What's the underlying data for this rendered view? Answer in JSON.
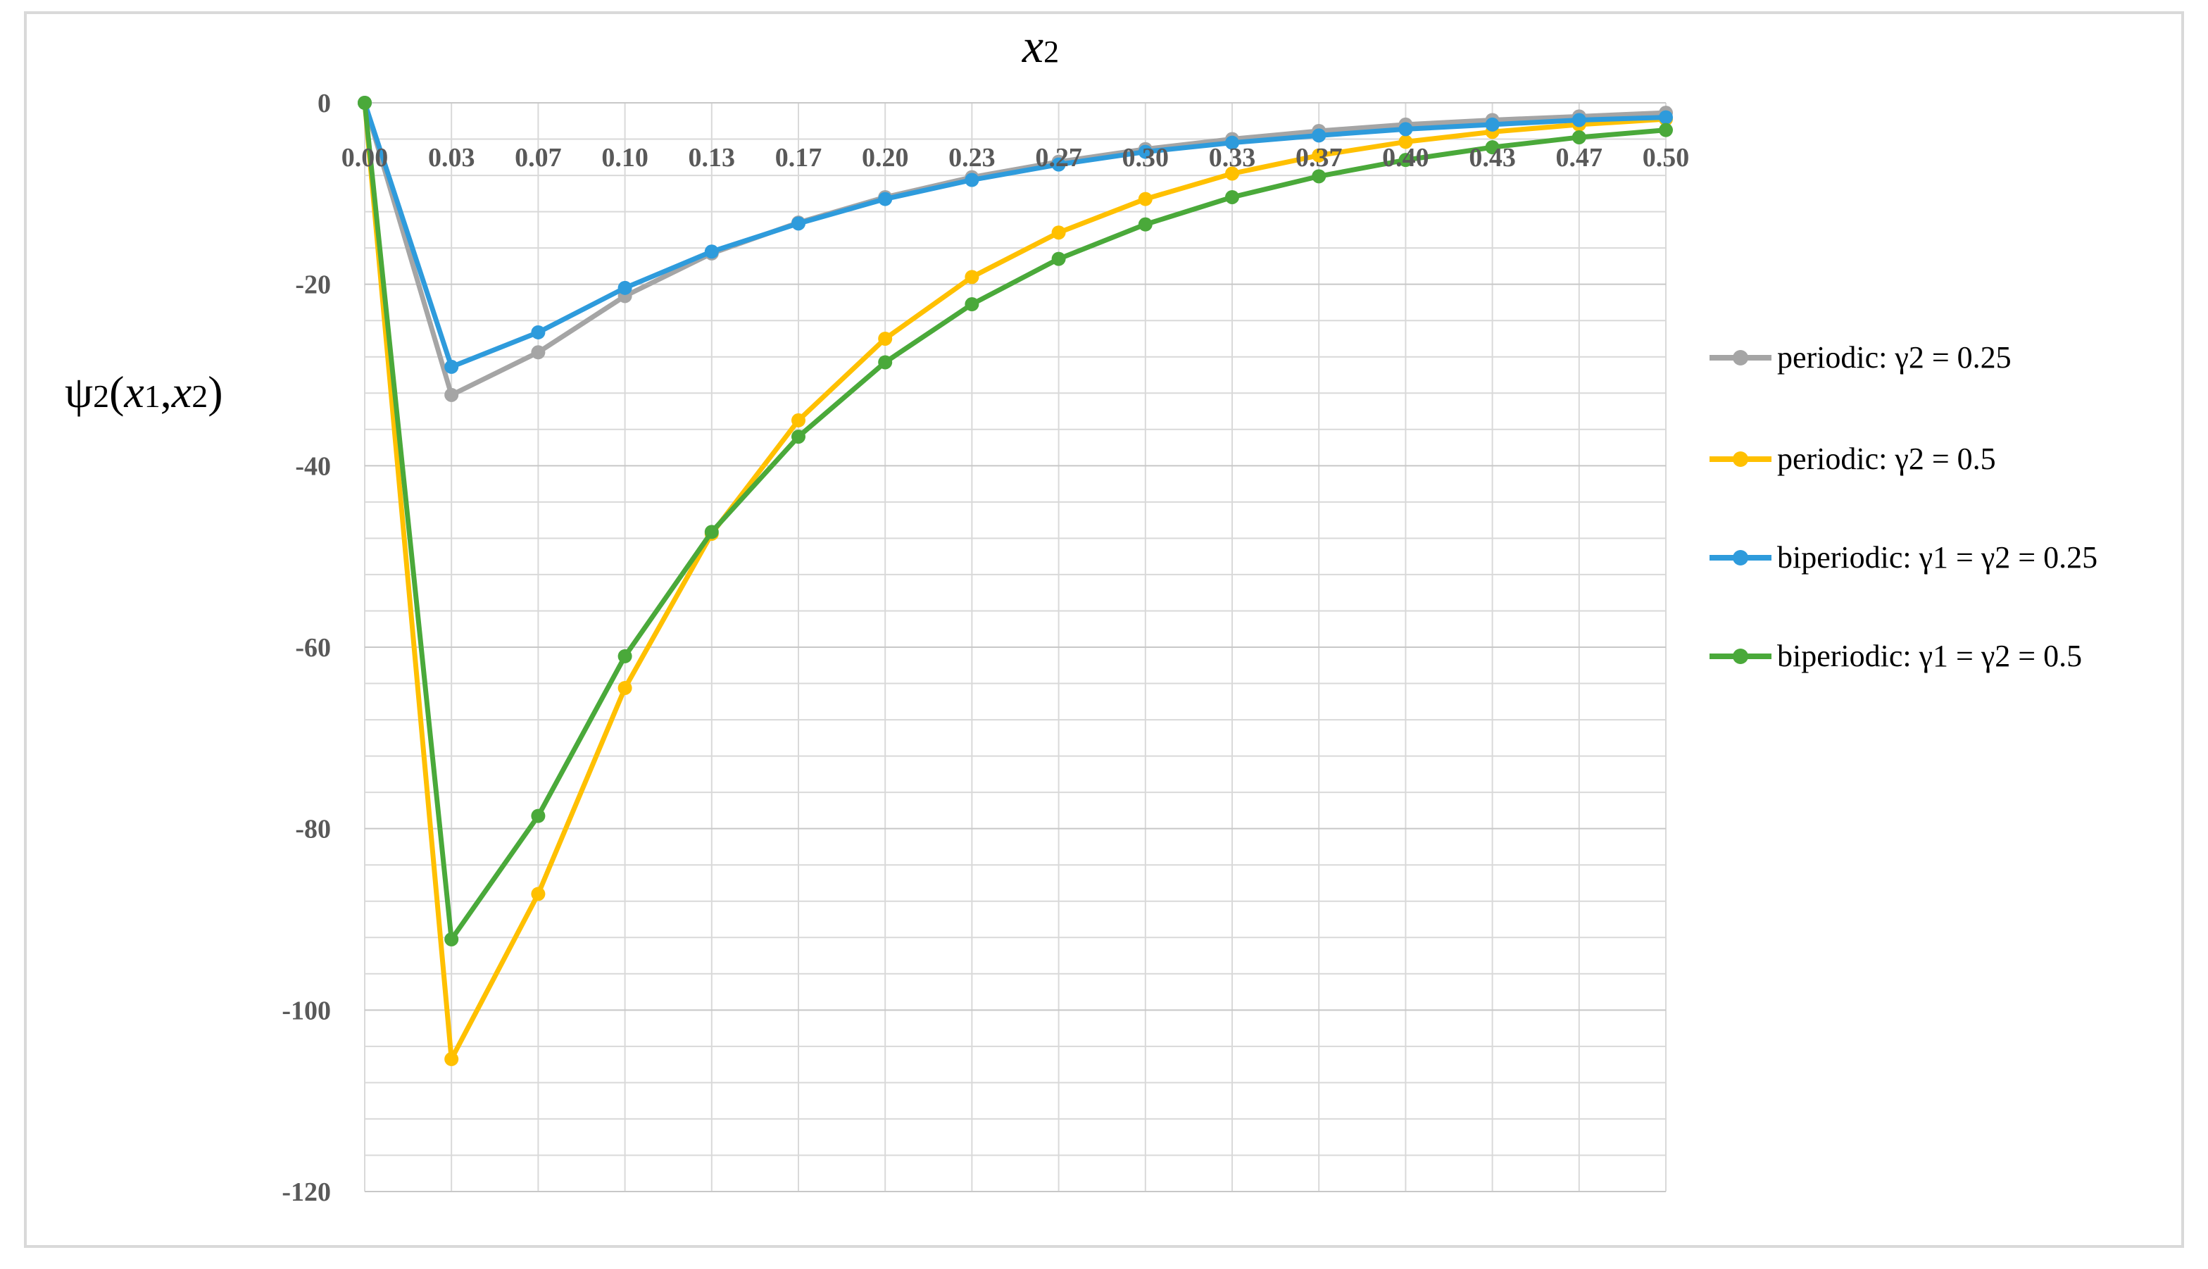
{
  "chart_data": {
    "type": "line",
    "title": "",
    "xlabel": "x2",
    "ylabel": "ψ2(x1,x2)",
    "x_axis_position": "top",
    "grid": true,
    "legend_position": "right",
    "ylim": [
      -120,
      0
    ],
    "y_ticks": [
      "0",
      "-20",
      "-40",
      "-60",
      "-80",
      "-100",
      "-120"
    ],
    "categories": [
      "0.00",
      "0.03",
      "0.07",
      "0.10",
      "0.13",
      "0.17",
      "0.20",
      "0.23",
      "0.27",
      "0.30",
      "0.33",
      "0.37",
      "0.40",
      "0.43",
      "0.47",
      "0.50"
    ],
    "series": [
      {
        "name": "periodic: γ2 = 0.25",
        "color": "#a5a5a5",
        "values": [
          0,
          -32.2,
          -27.5,
          -21.3,
          -16.6,
          -13.2,
          -10.4,
          -8.2,
          -6.5,
          -5.1,
          -4.0,
          -3.1,
          -2.4,
          -1.9,
          -1.5,
          -1.1
        ]
      },
      {
        "name": "periodic: γ2 = 0.5",
        "color": "#ffc000",
        "values": [
          0,
          -105.4,
          -87.2,
          -64.5,
          -47.5,
          -35.0,
          -26.0,
          -19.2,
          -14.3,
          -10.6,
          -7.8,
          -5.8,
          -4.3,
          -3.2,
          -2.4,
          -1.8
        ]
      },
      {
        "name": "biperiodic: γ1 = γ2 = 0.25",
        "color": "#2e9bdc",
        "values": [
          0,
          -29.1,
          -25.3,
          -20.4,
          -16.4,
          -13.3,
          -10.6,
          -8.5,
          -6.8,
          -5.4,
          -4.4,
          -3.6,
          -2.9,
          -2.4,
          -1.9,
          -1.6
        ]
      },
      {
        "name": "biperiodic: γ1 = γ2 = 0.5",
        "color": "#4aa93a",
        "values": [
          0,
          -92.2,
          -78.6,
          -61.0,
          -47.3,
          -36.8,
          -28.6,
          -22.2,
          -17.2,
          -13.4,
          -10.4,
          -8.1,
          -6.3,
          -4.9,
          -3.8,
          -3.0
        ]
      }
    ]
  }
}
